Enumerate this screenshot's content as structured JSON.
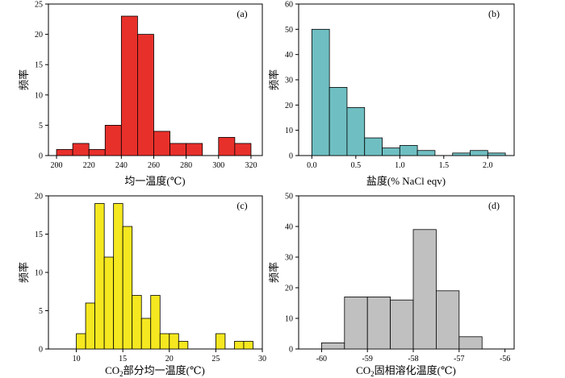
{
  "charts": [
    {
      "panel_label": "(a)",
      "ylabel": "频率",
      "xlabel": "均一温度(℃)",
      "xlabel_sub": "",
      "xlabel_rest": "",
      "color": "#e8302b",
      "xlim": [
        195,
        327
      ],
      "ylim": [
        0,
        25
      ],
      "xticks": [
        200,
        220,
        240,
        260,
        280,
        300,
        320
      ],
      "yticks": [
        0,
        5,
        10,
        15,
        20,
        25
      ],
      "bins": [
        [
          200,
          210,
          1
        ],
        [
          210,
          220,
          2
        ],
        [
          220,
          230,
          1
        ],
        [
          230,
          240,
          5
        ],
        [
          240,
          250,
          23
        ],
        [
          250,
          260,
          20
        ],
        [
          260,
          270,
          4
        ],
        [
          270,
          280,
          2
        ],
        [
          280,
          290,
          2
        ],
        [
          300,
          310,
          3
        ],
        [
          310,
          320,
          2
        ]
      ]
    },
    {
      "panel_label": "(b)",
      "ylabel": "频率",
      "xlabel": "盐度(% NaCl eqv)",
      "xlabel_sub": "",
      "xlabel_rest": "",
      "color": "#6fbfc2",
      "xlim": [
        -0.15,
        2.3
      ],
      "ylim": [
        0,
        60
      ],
      "xticks": [
        0.0,
        0.5,
        1.0,
        1.5,
        2.0
      ],
      "xtick_labels": [
        "0.0",
        "0.5",
        "1.0",
        "1.5",
        "2.0"
      ],
      "yticks": [
        0,
        10,
        20,
        30,
        40,
        50,
        60
      ],
      "bins": [
        [
          0,
          0.2,
          50
        ],
        [
          0.2,
          0.4,
          27
        ],
        [
          0.4,
          0.6,
          19
        ],
        [
          0.6,
          0.8,
          7
        ],
        [
          0.8,
          1.0,
          3
        ],
        [
          1.0,
          1.2,
          4
        ],
        [
          1.2,
          1.4,
          2
        ],
        [
          1.6,
          1.8,
          1
        ],
        [
          1.8,
          2.0,
          2
        ],
        [
          2.0,
          2.2,
          1
        ]
      ]
    },
    {
      "panel_label": "(c)",
      "ylabel": "频率",
      "xlabel": "CO",
      "xlabel_sub": "2",
      "xlabel_rest": "部分均一温度(℃)",
      "color": "#f5e820",
      "xlim": [
        7,
        30
      ],
      "ylim": [
        0,
        20
      ],
      "xticks": [
        10,
        15,
        20,
        25,
        30
      ],
      "yticks": [
        0,
        5,
        10,
        15,
        20
      ],
      "bins": [
        [
          10,
          11,
          2
        ],
        [
          11,
          12,
          6
        ],
        [
          12,
          13,
          19
        ],
        [
          13,
          14,
          12
        ],
        [
          14,
          15,
          19
        ],
        [
          15,
          16,
          16
        ],
        [
          16,
          17,
          7
        ],
        [
          17,
          18,
          4
        ],
        [
          18,
          19,
          7
        ],
        [
          19,
          20,
          2
        ],
        [
          20,
          21,
          2
        ],
        [
          21,
          22,
          1
        ],
        [
          25,
          26,
          2
        ],
        [
          27,
          28,
          1
        ],
        [
          28,
          29,
          1
        ]
      ]
    },
    {
      "panel_label": "(d)",
      "ylabel": "频率",
      "xlabel": "CO",
      "xlabel_sub": "2",
      "xlabel_rest": "固相溶化温度(℃)",
      "color": "#c0c0c0",
      "xlim": [
        -60.5,
        -55.8
      ],
      "ylim": [
        0,
        50
      ],
      "xticks": [
        -60,
        -59,
        -58,
        -57,
        -56
      ],
      "yticks": [
        0,
        10,
        20,
        30,
        40,
        50
      ],
      "bins": [
        [
          -60,
          -59.5,
          2
        ],
        [
          -59.5,
          -59,
          17
        ],
        [
          -59,
          -58.5,
          17
        ],
        [
          -58.5,
          -58,
          16
        ],
        [
          -58,
          -57.5,
          39
        ],
        [
          -57.5,
          -57,
          19
        ],
        [
          -57,
          -56.5,
          4
        ]
      ]
    }
  ]
}
